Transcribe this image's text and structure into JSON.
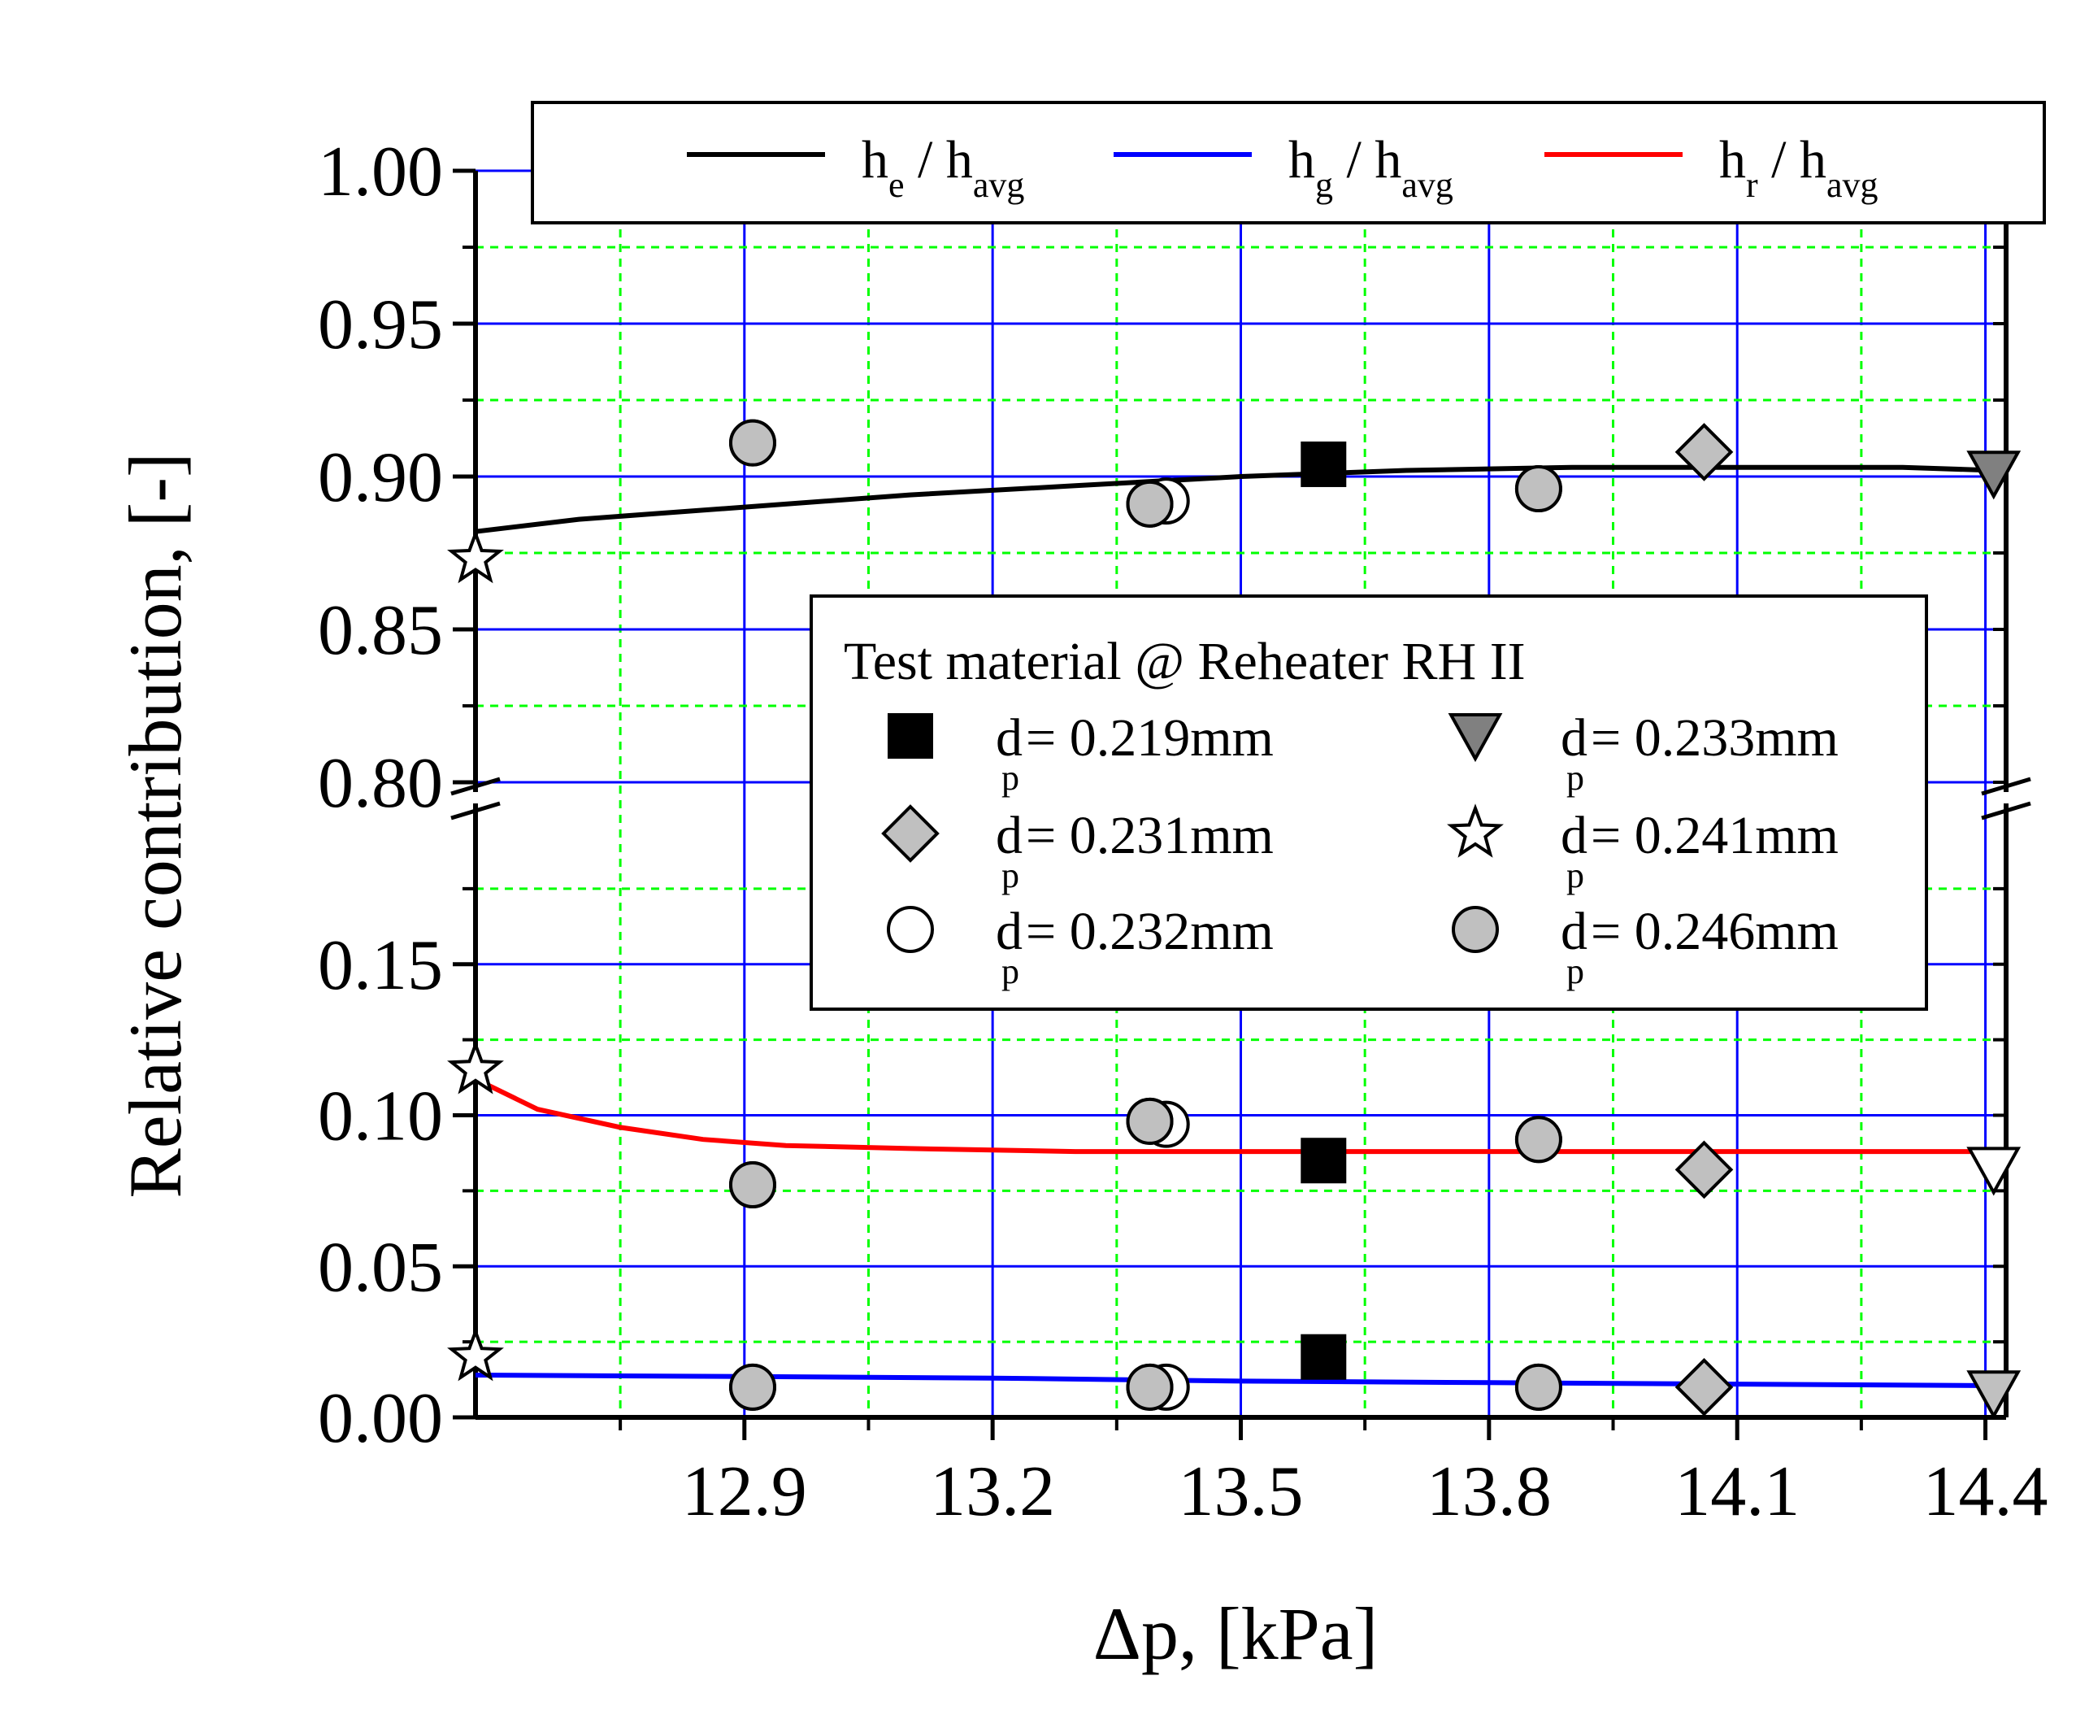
{
  "chart_data": {
    "type": "scatter",
    "xlabel": "Δp, [kPa]",
    "ylabel": "Relative contribution, [-]",
    "xlim": [
      12.575,
      14.425
    ],
    "x_ticks": [
      "12.9",
      "13.2",
      "13.5",
      "13.8",
      "14.1",
      "14.4"
    ],
    "y_axis_break": {
      "lower_range": [
        0.0,
        0.2
      ],
      "upper_range": [
        0.8,
        1.0
      ]
    },
    "y_ticks": [
      "0.00",
      "0.05",
      "0.10",
      "0.15",
      "0.80",
      "0.85",
      "0.90",
      "0.95",
      "1.00"
    ],
    "grid": true,
    "line_legend": [
      {
        "name": "h_e / h_avg",
        "main": "h",
        "sub": "e",
        "suffix": " / h",
        "suffix_sub": "avg",
        "color": "#000000"
      },
      {
        "name": "h_g / h_avg",
        "main": "h",
        "sub": "g",
        "suffix": " / h",
        "suffix_sub": "avg",
        "color": "#0000ff"
      },
      {
        "name": "h_r / h_avg",
        "main": "h",
        "sub": "r",
        "suffix": " / h",
        "suffix_sub": "avg",
        "color": "#ff0000"
      }
    ],
    "fit_lines": [
      {
        "name": "h_e / h_avg",
        "color": "#000000",
        "x": [
          12.575,
          12.7,
          12.9,
          13.1,
          13.3,
          13.5,
          13.7,
          13.9,
          14.1,
          14.3,
          14.41
        ],
        "y": [
          0.882,
          0.886,
          0.89,
          0.894,
          0.897,
          0.9,
          0.902,
          0.903,
          0.903,
          0.903,
          0.902
        ]
      },
      {
        "name": "h_g / h_avg",
        "color": "#0000ff",
        "x": [
          12.575,
          12.9,
          13.2,
          13.5,
          13.8,
          14.1,
          14.41
        ],
        "y": [
          0.014,
          0.0135,
          0.013,
          0.012,
          0.0115,
          0.011,
          0.0105
        ]
      },
      {
        "name": "h_r / h_avg",
        "color": "#ff0000",
        "x": [
          12.575,
          12.65,
          12.75,
          12.85,
          12.95,
          13.1,
          13.3,
          13.6,
          13.9,
          14.2,
          14.41
        ],
        "y": [
          0.112,
          0.102,
          0.096,
          0.092,
          0.09,
          0.089,
          0.088,
          0.088,
          0.088,
          0.088,
          0.088
        ]
      }
    ],
    "series": [
      {
        "name": "d_p = 0.219mm",
        "sub_label": "d",
        "sub": "p",
        "value_label": "= 0.219mm",
        "marker": "square",
        "fill": "#000000",
        "points": [
          {
            "x": 13.6,
            "y": 0.904
          },
          {
            "x": 13.6,
            "y": 0.085
          },
          {
            "x": 13.6,
            "y": 0.02
          }
        ]
      },
      {
        "name": "d_p = 0.231mm",
        "sub_label": "d",
        "sub": "p",
        "value_label": "= 0.231mm",
        "marker": "diamond",
        "fill": "#c0c0c0",
        "points": [
          {
            "x": 14.06,
            "y": 0.908
          },
          {
            "x": 14.06,
            "y": 0.082
          },
          {
            "x": 14.06,
            "y": 0.01
          }
        ]
      },
      {
        "name": "d_p = 0.232mm",
        "sub_label": "d",
        "sub": "p",
        "value_label": "= 0.232mm",
        "marker": "circle",
        "fill": "#ffffff",
        "points": [
          {
            "x": 13.4,
            "y": 0.892
          },
          {
            "x": 13.4,
            "y": 0.097
          },
          {
            "x": 13.4,
            "y": 0.01
          }
        ]
      },
      {
        "name": "d_p = 0.233mm",
        "sub_label": "d",
        "sub": "p",
        "value_label": "= 0.233mm",
        "marker": "triangle-down",
        "fill": "#808080",
        "points": [
          {
            "x": 14.41,
            "y": 0.901
          }
        ]
      },
      {
        "name": "d_p = 0.233mm (open)",
        "legend": false,
        "marker": "triangle-down",
        "fill": "#ffffff",
        "points": [
          {
            "x": 14.41,
            "y": 0.082
          }
        ]
      },
      {
        "name": "d_p = 0.233mm (light)",
        "legend": false,
        "marker": "triangle-down",
        "fill": "#c0c0c0",
        "points": [
          {
            "x": 14.41,
            "y": 0.008
          }
        ]
      },
      {
        "name": "d_p = 0.241mm",
        "sub_label": "d",
        "sub": "p",
        "value_label": "= 0.241mm",
        "marker": "star",
        "fill": "#ffffff",
        "points": [
          {
            "x": 12.575,
            "y": 0.873
          },
          {
            "x": 12.575,
            "y": 0.115
          },
          {
            "x": 12.575,
            "y": 0.02
          }
        ]
      },
      {
        "name": "d_p = 0.246mm",
        "sub_label": "d",
        "sub": "p",
        "value_label": "= 0.246mm",
        "marker": "circle",
        "fill": "#c0c0c0",
        "points": [
          {
            "x": 12.91,
            "y": 0.911
          },
          {
            "x": 13.39,
            "y": 0.891
          },
          {
            "x": 13.86,
            "y": 0.896
          },
          {
            "x": 12.91,
            "y": 0.077
          },
          {
            "x": 13.39,
            "y": 0.098
          },
          {
            "x": 13.86,
            "y": 0.092
          },
          {
            "x": 12.91,
            "y": 0.01
          },
          {
            "x": 13.39,
            "y": 0.01
          },
          {
            "x": 13.86,
            "y": 0.01
          }
        ]
      }
    ],
    "marker_legend_title": "Test material @ Reheater RH II"
  }
}
